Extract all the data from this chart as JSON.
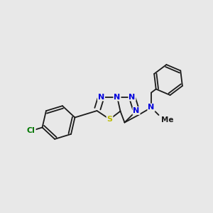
{
  "background_color": "#e8e8e8",
  "bond_color": "#1a1a1a",
  "N_color": "#0000dd",
  "S_color": "#bbbb00",
  "Cl_color": "#007700",
  "lw": 1.3,
  "fs": 8.0,
  "dbo": 0.13,
  "xlim": [
    0,
    10
  ],
  "ylim": [
    0,
    10
  ]
}
